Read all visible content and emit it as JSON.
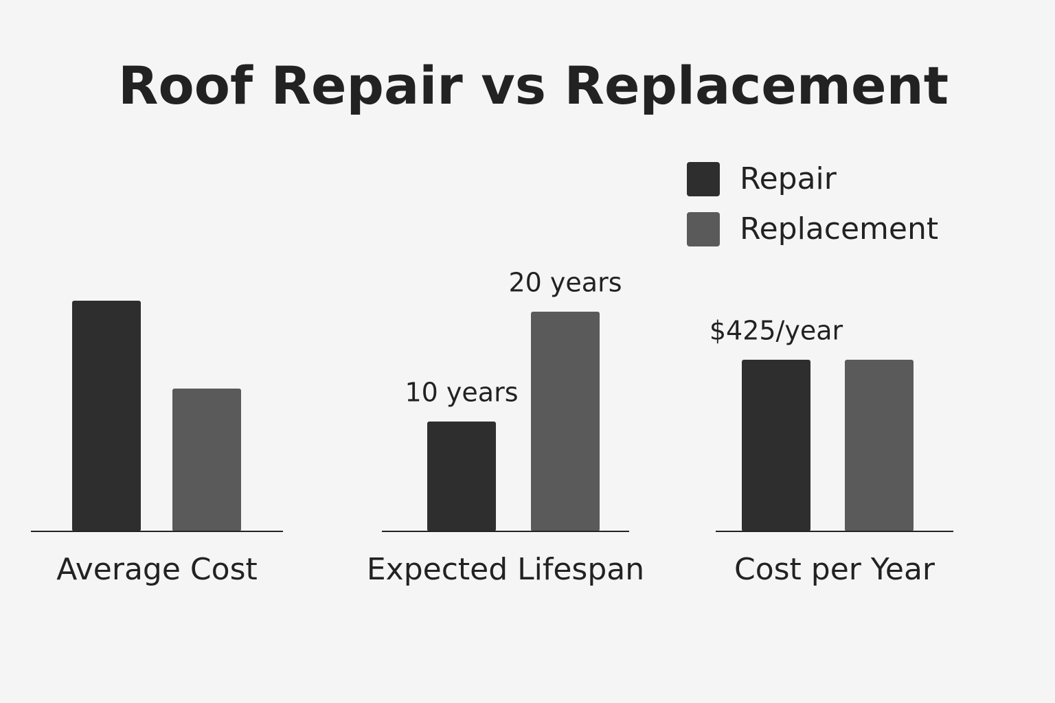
{
  "chart_data": {
    "type": "bar",
    "title": "Roof Repair vs Replacement",
    "series": [
      {
        "name": "Repair",
        "color": "#2e2e2e"
      },
      {
        "name": "Replacement",
        "color": "#5a5a5a"
      }
    ],
    "legend": "top-right",
    "panels": [
      {
        "label": "Average Cost",
        "values": [
          84,
          52
        ],
        "ylim": [
          0,
          100
        ]
      },
      {
        "label": "Expected Lifespan",
        "values": [
          10,
          20
        ],
        "value_labels": [
          "10 years",
          "20 years"
        ],
        "ylim": [
          0,
          25
        ]
      },
      {
        "label": "Cost per Year",
        "values": [
          425,
          425
        ],
        "value_labels": [
          "$425/year",
          null
        ],
        "ylim": [
          0,
          680
        ]
      }
    ]
  }
}
